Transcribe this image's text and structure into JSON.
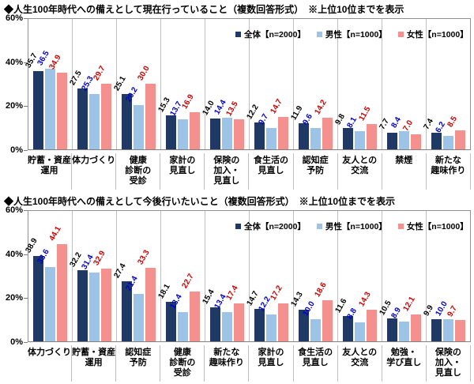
{
  "page": {
    "background": "#FFFFFF"
  },
  "colors": {
    "series": [
      "#1F3864",
      "#9DC3E6",
      "#F4918E"
    ],
    "value_labels": [
      "#000000",
      "#0000CC",
      "#CC0000"
    ],
    "axis_line": "#909090",
    "separator": "#BFBFBF",
    "title_text": "#000000"
  },
  "chart_data": [
    {
      "type": "bar",
      "title": "◆人生100年時代への備えとして現在行っていること（複数回答形式）　※上位10位までを表示",
      "categories": [
        "貯蓄・資産\n運用",
        "体力づくり",
        "健康\n診断の\n受診",
        "家計の\n見直し",
        "保険の\n加入・\n見直し",
        "食生活の\n見直し",
        "認知症\n予防",
        "友人との\n交流",
        "禁煙",
        "新たな\n趣味作り"
      ],
      "series": [
        {
          "name": "全体【n=2000】",
          "values": [
            35.7,
            27.5,
            25.1,
            15.3,
            14.0,
            12.2,
            11.9,
            9.8,
            7.7,
            7.4
          ]
        },
        {
          "name": "男性【n=1000】",
          "values": [
            36.5,
            25.3,
            20.2,
            13.7,
            14.4,
            9.7,
            9.6,
            8.1,
            8.4,
            6.2
          ]
        },
        {
          "name": "女性【n=1000】",
          "values": [
            34.9,
            29.7,
            30.0,
            16.9,
            13.5,
            14.7,
            14.2,
            11.5,
            7.0,
            8.5
          ]
        }
      ],
      "ylim": [
        0,
        60
      ],
      "yticks": [
        "0%",
        "20%",
        "40%",
        "60%"
      ],
      "xlabel": "",
      "ylabel": "",
      "grid": "vertical-category-separators-only",
      "legend_position": "inside-top-right",
      "value_labels_rotated": true
    },
    {
      "type": "bar",
      "title": "◆人生100年時代への備えとして今後行いたいこと（複数回答形式）　※上位10位までを表示",
      "categories": [
        "体力づくり",
        "貯蓄・資産\n運用",
        "認知症\n予防",
        "健康\n診断の\n受診",
        "新たな\n趣味作り",
        "家計の\n見直し",
        "食生活の\n見直し",
        "友人との\n交流",
        "勉強・\n学び直し",
        "保険の\n加入・\n見直し"
      ],
      "series": [
        {
          "name": "全体【n=2000】",
          "values": [
            38.9,
            32.2,
            27.4,
            18.1,
            15.4,
            14.7,
            14.3,
            11.6,
            10.5,
            9.9
          ]
        },
        {
          "name": "男性【n=1000】",
          "values": [
            33.6,
            31.4,
            21.4,
            13.4,
            13.4,
            12.2,
            10.0,
            8.8,
            8.9,
            10.0
          ]
        },
        {
          "name": "女性【n=1000】",
          "values": [
            44.1,
            32.9,
            33.3,
            22.7,
            17.4,
            17.2,
            18.6,
            14.3,
            12.1,
            9.7
          ]
        }
      ],
      "ylim": [
        0,
        60
      ],
      "yticks": [
        "0%",
        "20%",
        "40%",
        "60%"
      ],
      "xlabel": "",
      "ylabel": "",
      "grid": "vertical-category-separators-only",
      "legend_position": "inside-top-right",
      "value_labels_rotated": true
    }
  ]
}
